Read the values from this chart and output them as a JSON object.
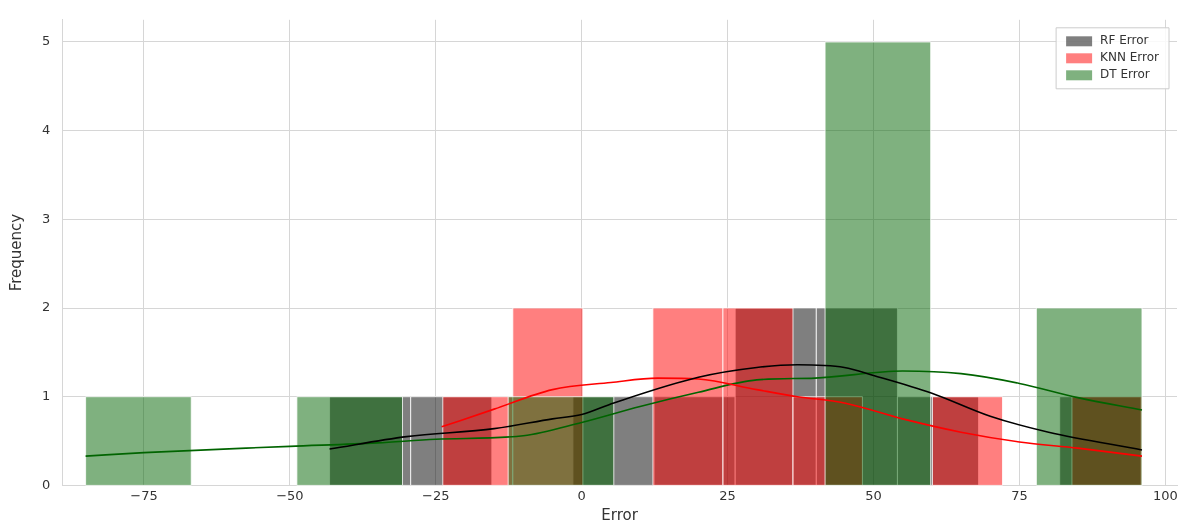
{
  "chart_data": {
    "type": "histogram",
    "xlabel": "Error",
    "ylabel": "Frequency",
    "xlim": [
      -89,
      102
    ],
    "ylim": [
      0,
      5.25
    ],
    "xticks": [
      {
        "value": -75,
        "label": "−75"
      },
      {
        "value": -50,
        "label": "−50"
      },
      {
        "value": -25,
        "label": "−25"
      },
      0,
      25,
      50,
      75,
      100
    ],
    "yticks": [
      0,
      1,
      2,
      3,
      4,
      5
    ],
    "grid": true,
    "legend": "top right",
    "series": [
      {
        "name": "RF Error",
        "color": "#000000",
        "bins": [
          -43.2,
          -29.3,
          -15.4,
          -1.5,
          12.4,
          26.3,
          40.2,
          54.1,
          68.0,
          81.9,
          95.8
        ],
        "values": [
          1,
          1,
          0,
          1,
          1,
          2,
          2,
          1,
          0,
          1
        ]
      },
      {
        "name": "KNN Error",
        "color": "#ff0000",
        "bins": [
          -23.8,
          -11.8,
          0.2,
          12.2,
          24.2,
          36.2,
          48.1,
          60.1,
          72.1,
          84.0,
          96.0
        ],
        "values": [
          1,
          2,
          0,
          2,
          2,
          1,
          0,
          1,
          0,
          1
        ]
      },
      {
        "name": "DT Error",
        "color": "#006400",
        "bins": [
          -85,
          -66.9,
          -48.8,
          -30.7,
          -12.6,
          5.5,
          23.6,
          41.7,
          59.8,
          77.9,
          96
        ],
        "values": [
          1,
          0,
          1,
          0,
          1,
          0,
          0,
          5,
          0,
          2
        ]
      },
      {
        "type": "line",
        "color": "#000000",
        "x": [
          -43.2,
          -30,
          -15,
          -5,
          0,
          5.5,
          20,
          30,
          37,
          45,
          50,
          60,
          70,
          80,
          96
        ],
        "values": [
          0.41,
          0.55,
          0.64,
          0.75,
          0.8,
          0.93,
          1.22,
          1.33,
          1.36,
          1.33,
          1.24,
          1.04,
          0.78,
          0.6,
          0.4
        ]
      },
      {
        "type": "line",
        "color": "#ff0000",
        "x": [
          -24,
          -15,
          -5,
          5,
          13,
          20,
          30,
          37,
          45,
          55,
          65,
          75,
          85,
          96
        ],
        "values": [
          0.66,
          0.86,
          1.08,
          1.16,
          1.21,
          1.2,
          1.08,
          1.0,
          0.93,
          0.75,
          0.6,
          0.49,
          0.42,
          0.33
        ]
      },
      {
        "type": "line",
        "color": "#006400",
        "x": [
          -85,
          -75,
          -50,
          -35,
          -25,
          -10,
          0,
          10,
          20,
          30,
          40,
          55,
          65,
          75,
          85,
          96
        ],
        "values": [
          0.33,
          0.37,
          0.44,
          0.48,
          0.52,
          0.56,
          0.71,
          0.89,
          1.05,
          1.19,
          1.21,
          1.29,
          1.26,
          1.15,
          0.99,
          0.85
        ]
      }
    ]
  }
}
